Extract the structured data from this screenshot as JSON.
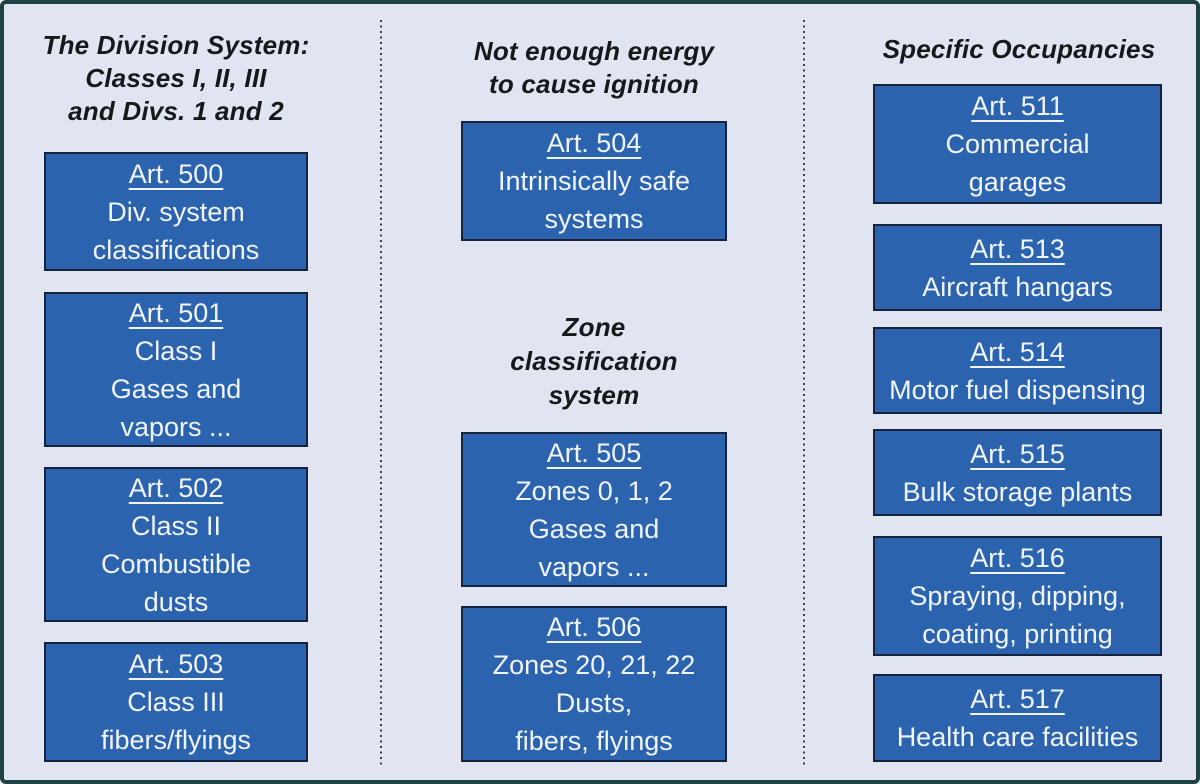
{
  "colors": {
    "canvas_background": "#e0e5f1",
    "canvas_border": "#1c4244",
    "box_fill": "#2c63ae",
    "box_border": "#16213e",
    "box_text": "#f0f4fb",
    "header_text": "#17181a",
    "divider_dots": "#3f4046"
  },
  "left_column": {
    "header": "The Division System:\nClasses I, II, III\nand Divs. 1 and 2",
    "boxes": [
      {
        "art": "Art. 500",
        "desc": "Div. system\nclassifications"
      },
      {
        "art": "Art. 501",
        "desc": "Class I\nGases and\nvapors ..."
      },
      {
        "art": "Art. 502",
        "desc": "Class II\nCombustible\ndusts"
      },
      {
        "art": "Art. 503",
        "desc": "Class III\nfibers/flyings"
      }
    ]
  },
  "middle_column": {
    "header_energy": "Not enough energy\nto cause ignition",
    "header_zone": "Zone\nclassification\nsystem",
    "boxes": [
      {
        "art": "Art. 504",
        "desc": "Intrinsically safe\nsystems"
      },
      {
        "art": "Art. 505",
        "desc": "Zones 0, 1, 2\nGases and\nvapors ..."
      },
      {
        "art": "Art. 506",
        "desc": "Zones 20, 21, 22\nDusts,\nfibers, flyings"
      }
    ]
  },
  "right_column": {
    "header": "Specific Occupancies",
    "boxes": [
      {
        "art": "Art. 511",
        "desc": "Commercial\ngarages"
      },
      {
        "art": "Art. 513",
        "desc": "Aircraft hangars"
      },
      {
        "art": "Art. 514",
        "desc": "Motor fuel dispensing"
      },
      {
        "art": "Art. 515",
        "desc": "Bulk storage plants"
      },
      {
        "art": "Art. 516",
        "desc": "Spraying, dipping,\ncoating, printing"
      },
      {
        "art": "Art. 517",
        "desc": "Health care facilities"
      }
    ]
  }
}
